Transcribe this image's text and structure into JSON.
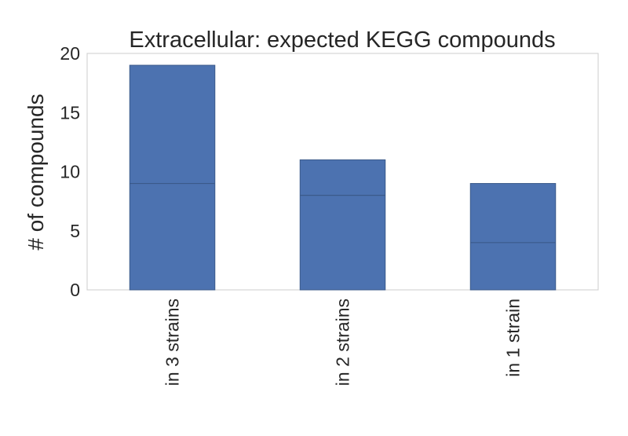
{
  "chart_data": {
    "type": "bar",
    "title": "Extracellular: expected KEGG compounds",
    "ylabel": "# of compounds",
    "xlabel": "",
    "categories": [
      "in 3 strains",
      "in 2 strains",
      "in 1 strain"
    ],
    "values": [
      19,
      11,
      9
    ],
    "stacked_segment_boundaries": [
      9,
      8,
      4
    ],
    "ylim": [
      0,
      20
    ],
    "yticks": [
      0,
      5,
      10,
      15,
      20
    ],
    "grid": false,
    "colors": {
      "bar": "#4c72b0",
      "frame": "#cccccc",
      "text": "#262626"
    }
  }
}
